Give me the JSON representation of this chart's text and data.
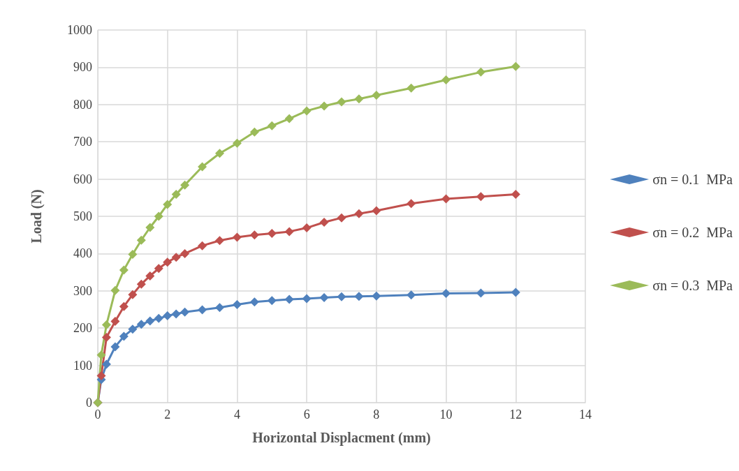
{
  "chart_data": {
    "type": "line",
    "xlabel": "Horizontal Displacment (mm)",
    "ylabel": "Load (N)",
    "x": [
      0,
      0.1,
      0.25,
      0.5,
      0.75,
      1,
      1.25,
      1.5,
      1.75,
      2,
      2.25,
      2.5,
      3,
      3.5,
      4,
      4.5,
      5,
      5.5,
      6,
      6.5,
      7,
      7.5,
      8,
      9,
      10,
      11,
      12
    ],
    "series": [
      {
        "name": "σn = 0.1  MPa",
        "color": "#4f81bd",
        "values": [
          0,
          62,
          103,
          150,
          178,
          197,
          210,
          219,
          226,
          233,
          238,
          243,
          249,
          255,
          263,
          270,
          274,
          277,
          279,
          282,
          284,
          285,
          286,
          289,
          293,
          294,
          296
        ]
      },
      {
        "name": "σn = 0.2  MPa",
        "color": "#c0504d",
        "values": [
          0,
          72,
          175,
          218,
          258,
          290,
          318,
          340,
          360,
          377,
          390,
          400,
          421,
          435,
          444,
          450,
          454,
          459,
          469,
          484,
          496,
          507,
          515,
          534,
          547,
          553,
          559
        ]
      },
      {
        "name": "σn = 0.3  MPa",
        "color": "#9bbb59",
        "values": [
          0,
          128,
          209,
          301,
          356,
          398,
          436,
          470,
          500,
          532,
          559,
          584,
          633,
          669,
          696,
          726,
          743,
          762,
          783,
          796,
          807,
          815,
          825,
          844,
          866,
          887,
          902
        ]
      }
    ],
    "xlim": [
      0,
      14
    ],
    "xticks": [
      0,
      2,
      4,
      6,
      8,
      10,
      12,
      14
    ],
    "ylim": [
      0,
      1000
    ],
    "yticks": [
      0,
      100,
      200,
      300,
      400,
      500,
      600,
      700,
      800,
      900,
      1000
    ],
    "grid": true,
    "legend": "right",
    "marker": "diamond",
    "line_style": "solid"
  }
}
